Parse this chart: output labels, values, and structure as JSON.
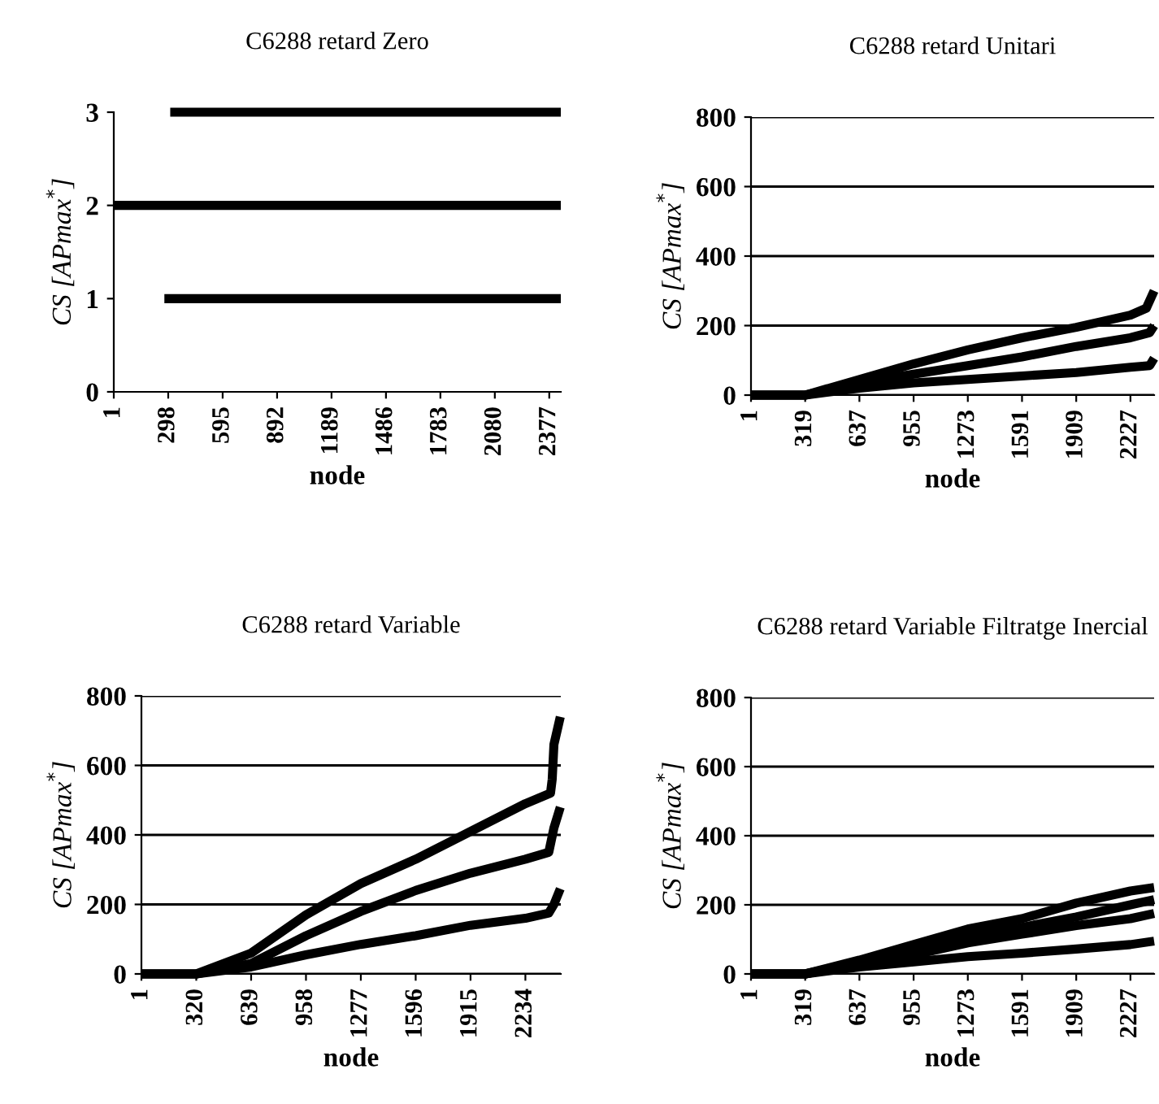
{
  "chart_data": [
    {
      "type": "line",
      "title": "C6288 retard Zero",
      "xlabel": "node",
      "ylabel": "CS [APmax$^{*}$]",
      "xlim": [
        1,
        2440
      ],
      "xticks": [
        1,
        298,
        595,
        892,
        1189,
        1486,
        1783,
        2080,
        2377
      ],
      "ylim": [
        0,
        3
      ],
      "yticks": [
        0,
        1,
        2,
        3
      ],
      "grid": false,
      "marker": "none",
      "line_style": "solid",
      "series": [
        {
          "color": "#000000",
          "x": [
            277,
            2440
          ],
          "values": [
            1,
            1
          ]
        },
        {
          "color": "#000000",
          "x": [
            1,
            2440
          ],
          "values": [
            2,
            2
          ]
        },
        {
          "color": "#000000",
          "x": [
            309,
            2440
          ],
          "values": [
            3,
            3
          ]
        }
      ]
    },
    {
      "type": "line",
      "title": "C6288 retard Unitari",
      "xlabel": "node",
      "ylabel": "CS [APmax$^{*}$]",
      "xlim": [
        1,
        2366
      ],
      "xticks": [
        1,
        319,
        637,
        955,
        1273,
        1591,
        1909,
        2227
      ],
      "ylim": [
        0,
        800
      ],
      "yticks": [
        0,
        200,
        400,
        600,
        800
      ],
      "grid": "y",
      "marker": "none",
      "line_style": "solid",
      "series": [
        {
          "color": "#000000",
          "x": [
            1,
            319,
            637,
            955,
            1273,
            1591,
            1909,
            2227,
            2320,
            2366
          ],
          "values": [
            0,
            0,
            45,
            90,
            130,
            165,
            195,
            230,
            250,
            300
          ]
        },
        {
          "color": "#000000",
          "x": [
            1,
            319,
            637,
            955,
            1273,
            1591,
            1909,
            2227,
            2340,
            2366
          ],
          "values": [
            0,
            0,
            35,
            60,
            85,
            110,
            140,
            165,
            180,
            200
          ]
        },
        {
          "color": "#000000",
          "x": [
            1,
            319,
            637,
            955,
            1273,
            1591,
            1909,
            2227,
            2340,
            2366
          ],
          "values": [
            0,
            0,
            20,
            35,
            45,
            55,
            65,
            80,
            85,
            106
          ]
        }
      ]
    },
    {
      "type": "line",
      "title": "C6288 retard Variable",
      "xlabel": "node",
      "ylabel": "CS [APmax$^{*}$]",
      "xlim": [
        1,
        2440
      ],
      "xticks": [
        1,
        320,
        639,
        958,
        1277,
        1596,
        1915,
        2234
      ],
      "ylim": [
        0,
        800
      ],
      "yticks": [
        0,
        200,
        400,
        600,
        800
      ],
      "grid": "y",
      "marker": "none",
      "line_style": "solid",
      "series": [
        {
          "color": "#000000",
          "x": [
            1,
            320,
            639,
            958,
            1277,
            1596,
            1915,
            2234,
            2380,
            2390,
            2400,
            2437
          ],
          "values": [
            0,
            0,
            60,
            170,
            260,
            330,
            410,
            490,
            520,
            560,
            660,
            740
          ]
        },
        {
          "color": "#000000",
          "x": [
            1,
            320,
            639,
            958,
            1277,
            1596,
            1915,
            2234,
            2370,
            2400,
            2437
          ],
          "values": [
            0,
            0,
            30,
            110,
            180,
            240,
            290,
            330,
            350,
            420,
            480
          ]
        },
        {
          "color": "#000000",
          "x": [
            1,
            320,
            639,
            958,
            1277,
            1596,
            1915,
            2234,
            2370,
            2400,
            2437
          ],
          "values": [
            0,
            0,
            20,
            55,
            85,
            110,
            140,
            160,
            175,
            200,
            245
          ]
        }
      ]
    },
    {
      "type": "line",
      "title": "C6288 retard Variable Filtratge Inercial",
      "xlabel": "node",
      "ylabel": "CS [APmax$^{*}$]",
      "xlim": [
        1,
        2366
      ],
      "xticks": [
        1,
        319,
        637,
        955,
        1273,
        1591,
        1909,
        2227
      ],
      "ylim": [
        0,
        800
      ],
      "yticks": [
        0,
        200,
        400,
        600,
        800
      ],
      "grid": "y",
      "marker": "none",
      "line_style": "solid",
      "series": [
        {
          "color": "#000000",
          "x": [
            1,
            319,
            637,
            955,
            1273,
            1591,
            1909,
            2227,
            2366
          ],
          "values": [
            0,
            0,
            40,
            85,
            130,
            160,
            205,
            240,
            250
          ]
        },
        {
          "color": "#000000",
          "x": [
            1,
            319,
            637,
            955,
            1273,
            1591,
            1909,
            2227,
            2366
          ],
          "values": [
            0,
            0,
            35,
            70,
            110,
            135,
            165,
            200,
            215
          ]
        },
        {
          "color": "#000000",
          "x": [
            1,
            319,
            637,
            955,
            1273,
            1591,
            1909,
            2227,
            2366
          ],
          "values": [
            0,
            0,
            30,
            55,
            90,
            115,
            140,
            160,
            175
          ]
        },
        {
          "color": "#000000",
          "x": [
            1,
            319,
            637,
            955,
            1273,
            1591,
            1909,
            2227,
            2366
          ],
          "values": [
            0,
            0,
            20,
            35,
            50,
            60,
            72,
            85,
            95
          ]
        }
      ]
    }
  ]
}
